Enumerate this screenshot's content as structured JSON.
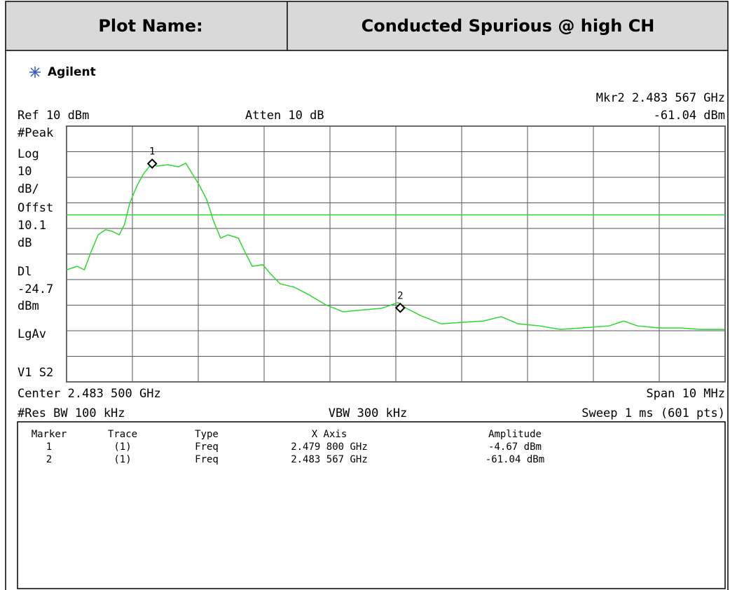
{
  "header": {
    "label": "Plot Name:",
    "value": "Conducted Spurious @ high CH"
  },
  "brand": "Agilent",
  "analyzer": {
    "ref": "Ref 10 dBm",
    "atten": "Atten 10 dB",
    "marker_readout": [
      "Mkr2  2.483 567 GHz",
      "-61.04 dBm"
    ],
    "left_labels": [
      "#Peak",
      "Log",
      "10",
      "dB/",
      "Offst",
      "10.1",
      "dB",
      "Dl"
    ],
    "left_labels_after": [
      "dBm",
      "LgAv",
      "V1  S2"
    ],
    "center": "Center 2.483 500 GHz",
    "span": "Span 10 MHz",
    "rbw": "#Res BW 100 kHz",
    "vbw": "VBW 300 kHz",
    "sweep": "Sweep 1 ms (601 pts)"
  },
  "chart_data": {
    "type": "line",
    "color": "#2ed82e",
    "grid": true,
    "xlim": [
      2.4785,
      2.4885
    ],
    "ylim": [
      -90,
      10
    ],
    "xticks": [
      2.4785,
      2.4795,
      2.4805,
      2.4815,
      2.4825,
      2.4835,
      2.4845,
      2.4855,
      2.4865,
      2.4875,
      2.4885
    ],
    "yticks": [
      -90,
      -80,
      -70,
      -60,
      -50,
      -40,
      -30,
      -20,
      -10,
      0,
      10
    ],
    "display_line": -24.7,
    "x": [
      2.4785,
      2.47866,
      2.47877,
      2.47887,
      2.47898,
      2.47909,
      2.47919,
      2.4793,
      2.47938,
      2.47946,
      2.47957,
      2.47967,
      2.47978,
      2.47988,
      2.48004,
      2.4802,
      2.48031,
      2.48041,
      2.48052,
      2.48063,
      2.48073,
      2.48084,
      2.48095,
      2.48111,
      2.48121,
      2.48132,
      2.48148,
      2.48159,
      2.48174,
      2.48196,
      2.48217,
      2.48244,
      2.4827,
      2.48302,
      2.48329,
      2.48353,
      2.48366,
      2.48387,
      2.48419,
      2.48451,
      2.48483,
      2.4851,
      2.48536,
      2.48568,
      2.486,
      2.48632,
      2.48674,
      2.48696,
      2.48717,
      2.48749,
      2.48781,
      2.48813,
      2.48849
    ],
    "values": [
      -46.2,
      -44.8,
      -46.2,
      -39.3,
      -32.5,
      -30.5,
      -31.1,
      -32.5,
      -28.4,
      -20.1,
      -13.3,
      -8.6,
      -5.1,
      -5.6,
      -5.1,
      -5.9,
      -4.5,
      -8.6,
      -13.3,
      -18.8,
      -27,
      -33.8,
      -32.5,
      -33.8,
      -39.3,
      -44.8,
      -44.2,
      -47.5,
      -51.6,
      -53,
      -55.8,
      -59.9,
      -62.6,
      -61.8,
      -61.2,
      -59,
      -61.2,
      -64,
      -67.3,
      -66.7,
      -66.2,
      -64.5,
      -67.3,
      -68.1,
      -69.5,
      -68.9,
      -68.1,
      -66.2,
      -68.1,
      -68.9,
      -68.9,
      -69.5,
      -69.5
    ],
    "markers": [
      {
        "label": "1",
        "x": 2.4798,
        "y": -4.67
      },
      {
        "label": "2",
        "x": 2.483567,
        "y": -61.04
      }
    ]
  },
  "marker_table": {
    "columns": [
      "Marker",
      "Trace",
      "Type",
      "X Axis",
      "Amplitude"
    ],
    "rows": [
      [
        "1",
        "(1)",
        "Freq",
        "2.479 800 GHz",
        "-4.67 dBm"
      ],
      [
        "2",
        "(1)",
        "Freq",
        "2.483 567 GHz",
        "-61.04 dBm"
      ]
    ]
  }
}
